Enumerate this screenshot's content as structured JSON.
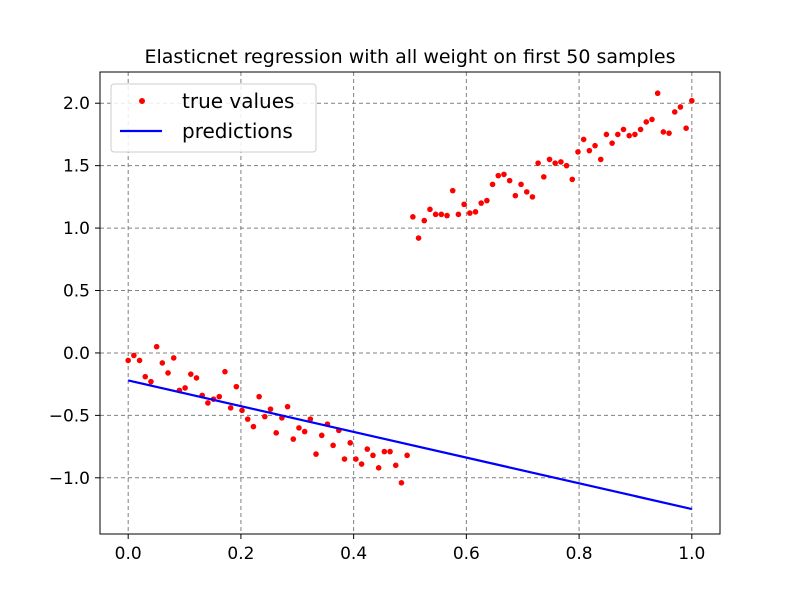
{
  "chart_data": {
    "type": "scatter",
    "title": "Elasticnet regression with all weight on first 50 samples",
    "xlabel": "",
    "ylabel": "",
    "xlim": [
      -0.05,
      1.05
    ],
    "ylim": [
      -1.45,
      2.25
    ],
    "xticks": [
      0.0,
      0.2,
      0.4,
      0.6,
      0.8,
      1.0
    ],
    "xtick_labels": [
      "0.0",
      "0.2",
      "0.4",
      "0.6",
      "0.8",
      "1.0"
    ],
    "yticks": [
      -1.0,
      -0.5,
      0.0,
      0.5,
      1.0,
      1.5,
      2.0
    ],
    "ytick_labels": [
      "−1.0",
      "−0.5",
      "0.0",
      "0.5",
      "1.0",
      "1.5",
      "2.0"
    ],
    "grid": true,
    "legend_position": "top-left",
    "series": [
      {
        "name": "true values",
        "kind": "scatter",
        "color": "#ff0000",
        "x": [
          0.0,
          0.0101,
          0.0202,
          0.0303,
          0.0404,
          0.0505,
          0.0606,
          0.0707,
          0.0808,
          0.0909,
          0.101,
          0.1111,
          0.1212,
          0.1313,
          0.1414,
          0.1515,
          0.1616,
          0.1717,
          0.1818,
          0.1919,
          0.202,
          0.2121,
          0.2222,
          0.2323,
          0.2424,
          0.2525,
          0.2626,
          0.2727,
          0.2828,
          0.2929,
          0.303,
          0.3131,
          0.3232,
          0.3333,
          0.3434,
          0.3535,
          0.3636,
          0.3737,
          0.3838,
          0.3939,
          0.404,
          0.4141,
          0.4242,
          0.4343,
          0.4444,
          0.4545,
          0.4646,
          0.4747,
          0.4848,
          0.4949,
          0.5051,
          0.5152,
          0.5253,
          0.5354,
          0.5455,
          0.5556,
          0.5657,
          0.5758,
          0.5859,
          0.596,
          0.6061,
          0.6162,
          0.6263,
          0.6364,
          0.6465,
          0.6566,
          0.6667,
          0.6768,
          0.6869,
          0.697,
          0.7071,
          0.7172,
          0.7273,
          0.7374,
          0.7475,
          0.7576,
          0.7677,
          0.7778,
          0.7879,
          0.798,
          0.8081,
          0.8182,
          0.8283,
          0.8384,
          0.8485,
          0.8586,
          0.8687,
          0.8788,
          0.8889,
          0.899,
          0.9091,
          0.9192,
          0.9293,
          0.9394,
          0.9495,
          0.9596,
          0.9697,
          0.9798,
          0.9899,
          1.0
        ],
        "y": [
          -0.06,
          -0.02,
          -0.06,
          -0.19,
          -0.23,
          0.05,
          -0.08,
          -0.16,
          -0.04,
          -0.3,
          -0.28,
          -0.17,
          -0.2,
          -0.34,
          -0.4,
          -0.37,
          -0.35,
          -0.15,
          -0.44,
          -0.27,
          -0.46,
          -0.53,
          -0.59,
          -0.35,
          -0.51,
          -0.45,
          -0.64,
          -0.52,
          -0.43,
          -0.69,
          -0.6,
          -0.63,
          -0.53,
          -0.81,
          -0.66,
          -0.57,
          -0.74,
          -0.62,
          -0.85,
          -0.72,
          -0.85,
          -0.89,
          -0.77,
          -0.82,
          -0.92,
          -0.79,
          -0.79,
          -0.9,
          -1.04,
          -0.82,
          1.09,
          0.92,
          1.06,
          1.15,
          1.11,
          1.11,
          1.1,
          1.3,
          1.11,
          1.19,
          1.12,
          1.13,
          1.2,
          1.22,
          1.35,
          1.42,
          1.43,
          1.38,
          1.26,
          1.35,
          1.29,
          1.25,
          1.52,
          1.41,
          1.55,
          1.52,
          1.53,
          1.5,
          1.39,
          1.61,
          1.71,
          1.62,
          1.66,
          1.55,
          1.75,
          1.68,
          1.75,
          1.79,
          1.74,
          1.75,
          1.79,
          1.85,
          1.87,
          2.08,
          1.77,
          1.76,
          1.93,
          1.97,
          1.8,
          2.02
        ]
      },
      {
        "name": "predictions",
        "kind": "line",
        "color": "#0000ff",
        "x": [
          0.0,
          1.0
        ],
        "y": [
          -0.22,
          -1.25
        ]
      }
    ]
  }
}
